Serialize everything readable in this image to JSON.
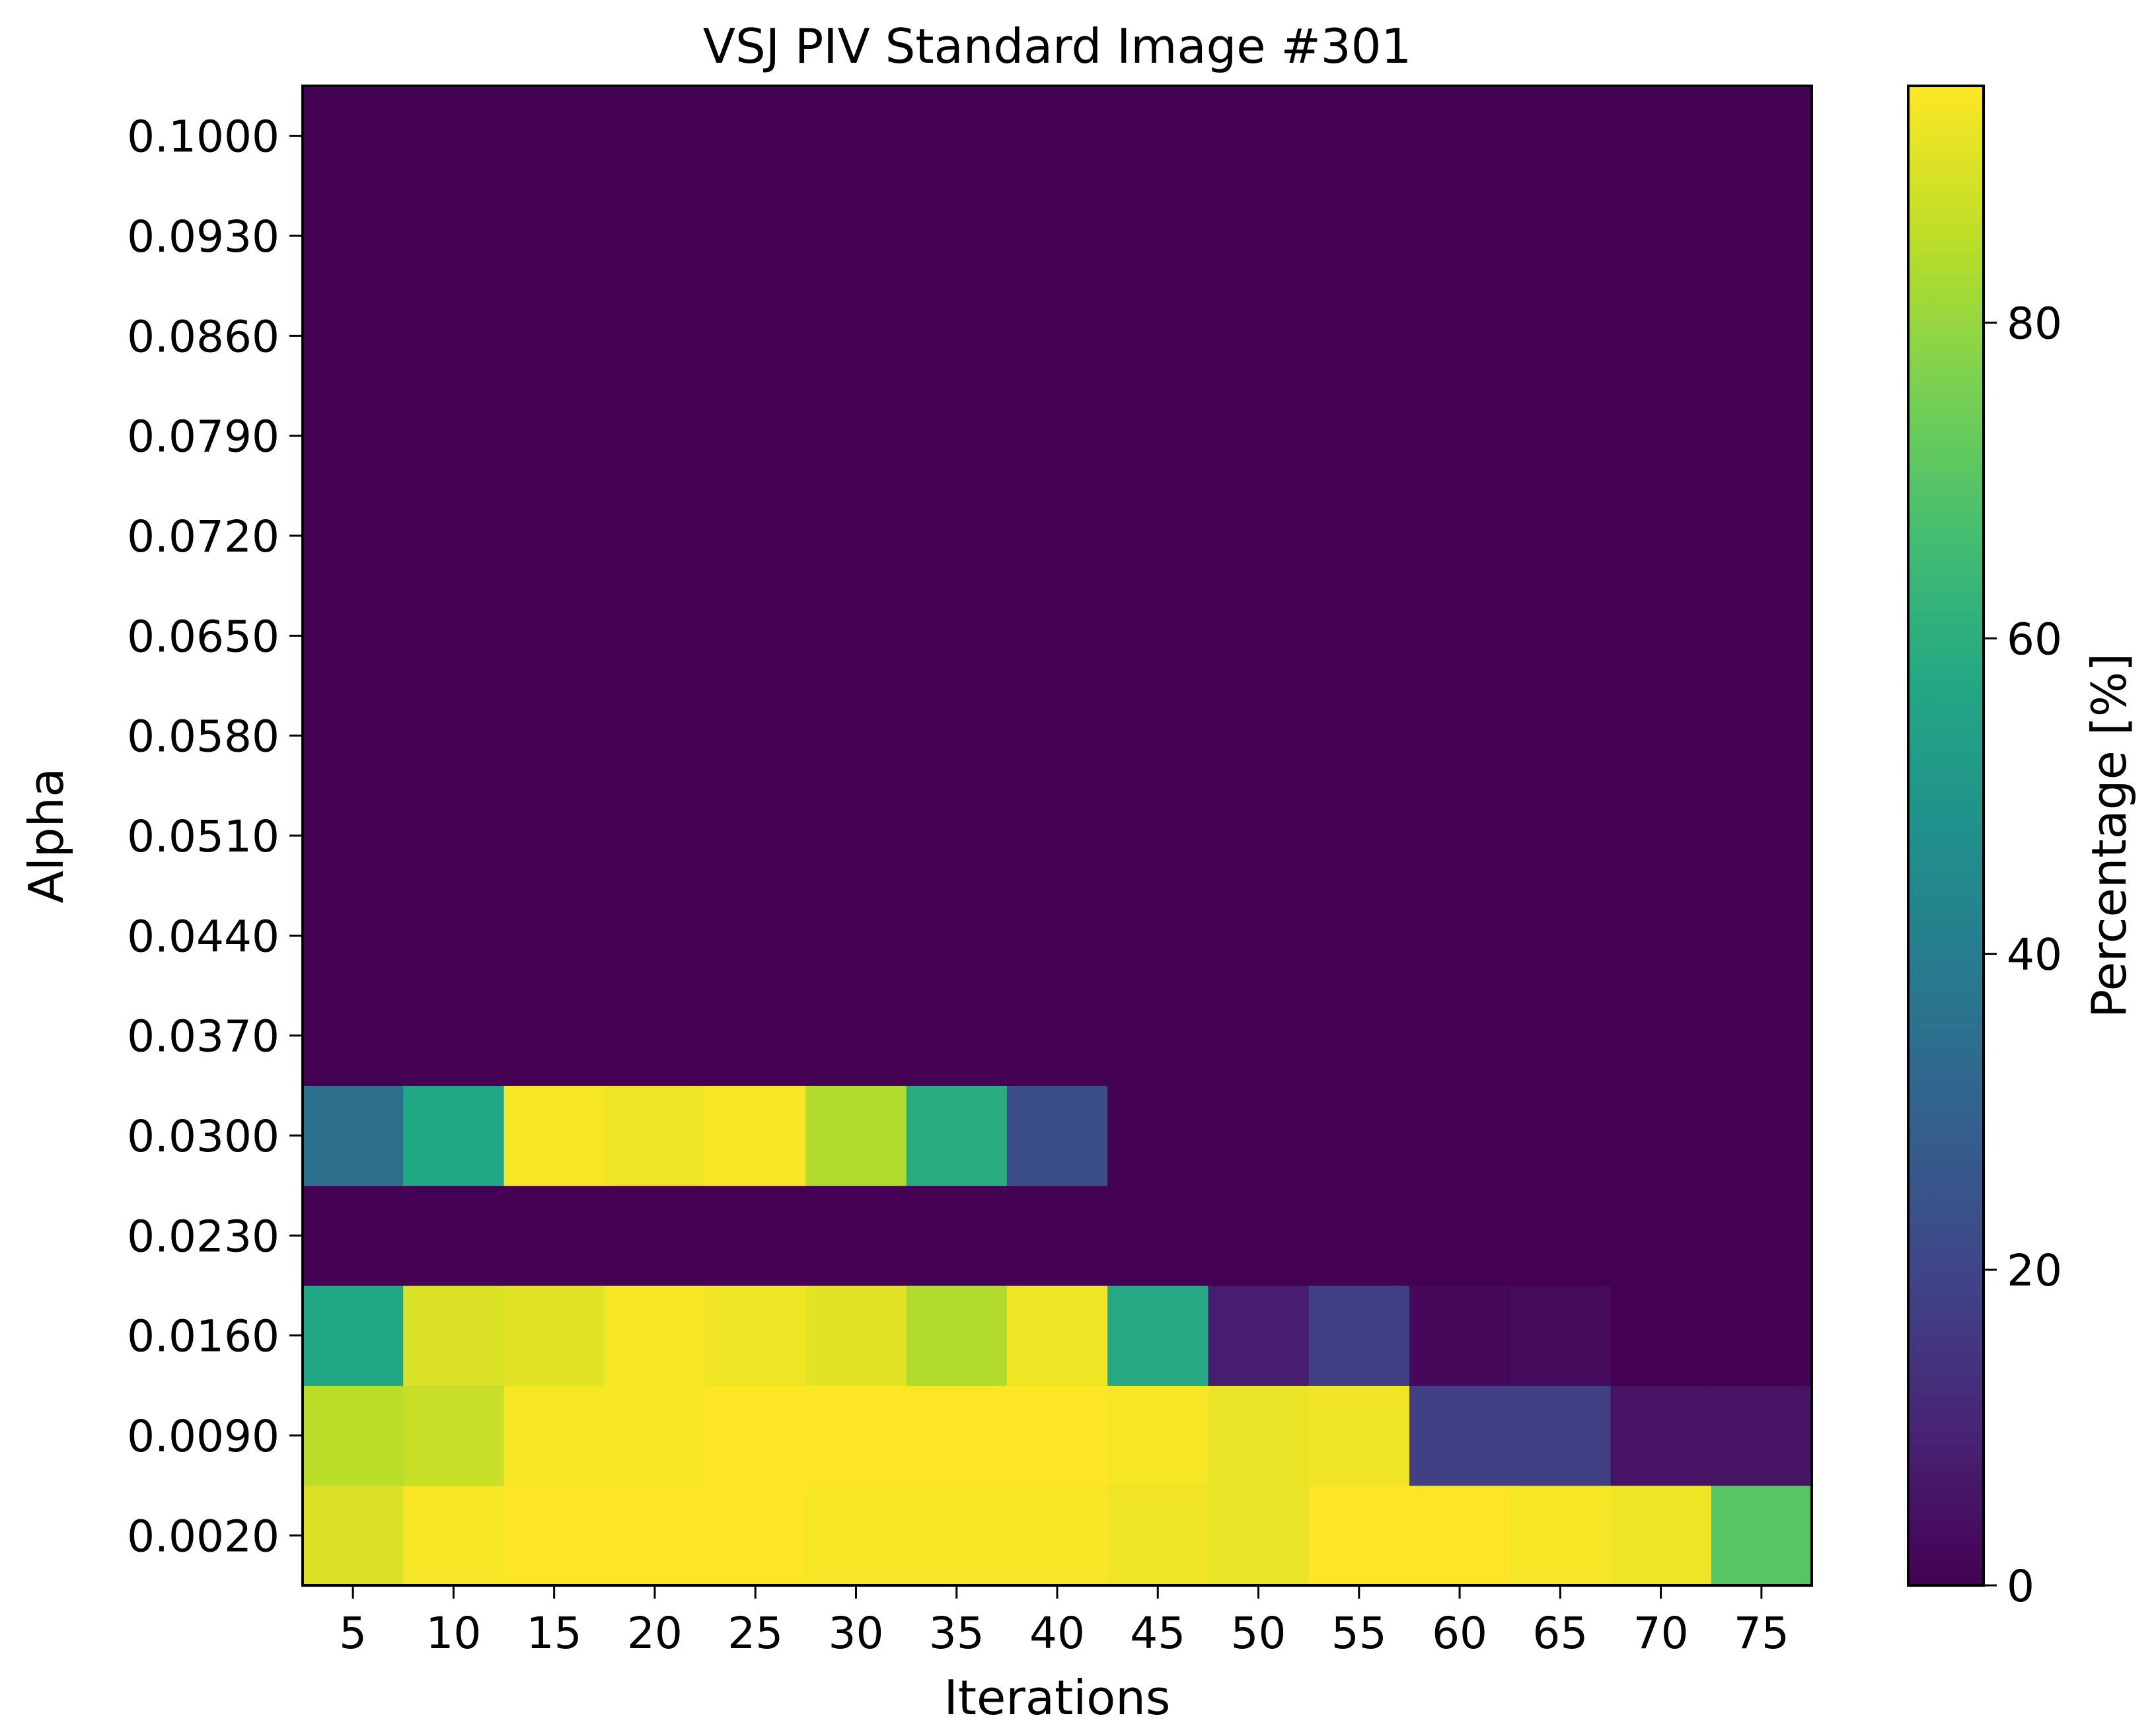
{
  "chart_data": {
    "type": "heatmap",
    "title": "VSJ PIV Standard Image #301",
    "xlabel": "Iterations",
    "ylabel": "Alpha",
    "x": [
      5,
      10,
      15,
      20,
      25,
      30,
      35,
      40,
      45,
      50,
      55,
      60,
      65,
      70,
      75
    ],
    "x_tick_labels": [
      "5",
      "10",
      "15",
      "20",
      "25",
      "30",
      "35",
      "40",
      "45",
      "50",
      "55",
      "60",
      "65",
      "70",
      "75"
    ],
    "y_tick_labels": [
      "0.0020",
      "0.0090",
      "0.0160",
      "0.0230",
      "0.0300",
      "0.0370",
      "0.0440",
      "0.0510",
      "0.0580",
      "0.0650",
      "0.0720",
      "0.0790",
      "0.0860",
      "0.0930",
      "0.1000"
    ],
    "rows_bottom_to_top": [
      [
        90,
        94,
        95,
        95,
        95,
        94,
        94,
        94,
        93,
        92,
        95,
        95,
        94,
        93,
        70
      ],
      [
        85,
        87,
        94,
        94,
        95,
        95,
        95,
        95,
        94,
        92,
        93,
        18,
        18,
        5,
        5
      ],
      [
        57,
        90,
        91,
        94,
        93,
        91,
        84,
        93,
        58,
        8,
        18,
        2,
        3,
        0,
        0
      ],
      [
        0,
        0,
        0,
        0,
        0,
        0,
        0,
        0,
        0,
        0,
        0,
        0,
        0,
        0,
        0
      ],
      [
        35,
        57,
        94,
        93,
        94,
        84,
        59,
        23,
        0,
        0,
        0,
        0,
        0,
        0,
        0
      ],
      [
        0,
        0,
        0,
        0,
        0,
        0,
        0,
        0,
        0,
        0,
        0,
        0,
        0,
        0,
        0
      ],
      [
        0,
        0,
        0,
        0,
        0,
        0,
        0,
        0,
        0,
        0,
        0,
        0,
        0,
        0,
        0
      ],
      [
        0,
        0,
        0,
        0,
        0,
        0,
        0,
        0,
        0,
        0,
        0,
        0,
        0,
        0,
        0
      ],
      [
        0,
        0,
        0,
        0,
        0,
        0,
        0,
        0,
        0,
        0,
        0,
        0,
        0,
        0,
        0
      ],
      [
        0,
        0,
        0,
        0,
        0,
        0,
        0,
        0,
        0,
        0,
        0,
        0,
        0,
        0,
        0
      ],
      [
        0,
        0,
        0,
        0,
        0,
        0,
        0,
        0,
        0,
        0,
        0,
        0,
        0,
        0,
        0
      ],
      [
        0,
        0,
        0,
        0,
        0,
        0,
        0,
        0,
        0,
        0,
        0,
        0,
        0,
        0,
        0
      ],
      [
        0,
        0,
        0,
        0,
        0,
        0,
        0,
        0,
        0,
        0,
        0,
        0,
        0,
        0,
        0
      ],
      [
        0,
        0,
        0,
        0,
        0,
        0,
        0,
        0,
        0,
        0,
        0,
        0,
        0,
        0,
        0
      ],
      [
        0,
        0,
        0,
        0,
        0,
        0,
        0,
        0,
        0,
        0,
        0,
        0,
        0,
        0,
        0
      ]
    ],
    "colorbar": {
      "label": "Percentage [%]",
      "colormap": "viridis",
      "vmin": 0,
      "vmax": 95,
      "ticks": [
        0,
        20,
        40,
        60,
        80
      ],
      "tick_labels": [
        "0",
        "20",
        "40",
        "60",
        "80"
      ]
    }
  }
}
